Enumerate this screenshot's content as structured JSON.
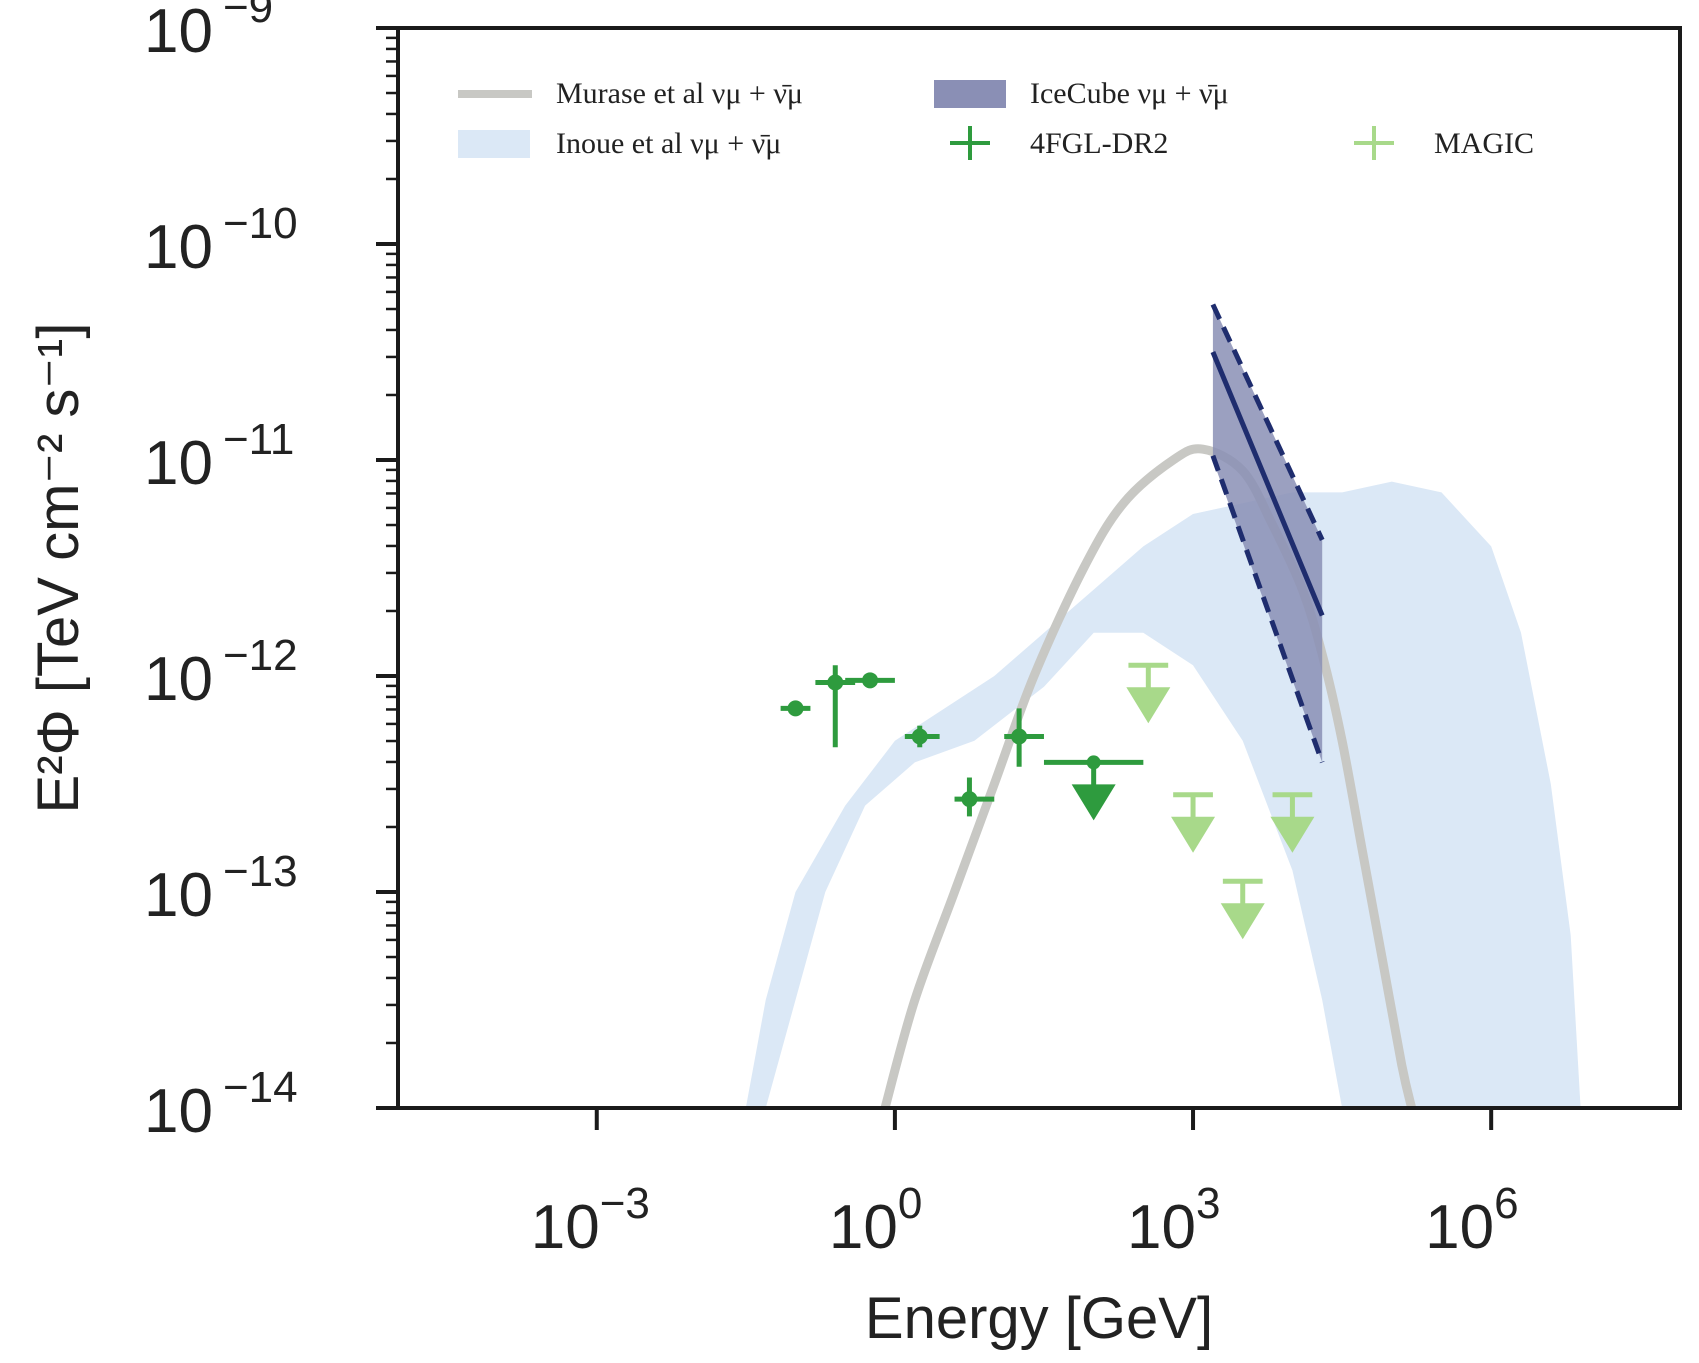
{
  "chart_data": {
    "type": "line",
    "title": "",
    "xlabel": "Energy [GeV]",
    "ylabel": "E²Φ [TeV cm⁻² s⁻¹]",
    "xscale": "log",
    "yscale": "log",
    "xlim_log10": [
      -5,
      7.9
    ],
    "ylim_log10": [
      -14,
      -9
    ],
    "x_ticks": [
      {
        "exp": -3,
        "base": "10",
        "sup": "−3"
      },
      {
        "exp": 0,
        "base": "10",
        "sup": "0"
      },
      {
        "exp": 3,
        "base": "10",
        "sup": "3"
      },
      {
        "exp": 6,
        "base": "10",
        "sup": "6"
      }
    ],
    "y_ticks": [
      {
        "exp": -9,
        "base": "10",
        "sup": "−9"
      },
      {
        "exp": -10,
        "base": "10",
        "sup": "−10"
      },
      {
        "exp": -11,
        "base": "10",
        "sup": "−11"
      },
      {
        "exp": -12,
        "base": "10",
        "sup": "−12"
      },
      {
        "exp": -13,
        "base": "10",
        "sup": "−13"
      },
      {
        "exp": -14,
        "base": "10",
        "sup": "−14"
      }
    ],
    "legend": [
      {
        "id": "murase",
        "label": "Murase et al νμ + ν̄μ",
        "kind": "line",
        "color": "#c8c8c4"
      },
      {
        "id": "icecube",
        "label": "IceCube νμ + ν̄μ",
        "kind": "patch",
        "color": "#8a8fb5"
      },
      {
        "id": "inoue",
        "label": "Inoue et al νμ + ν̄μ",
        "kind": "patch",
        "color": "#dbe8f6"
      },
      {
        "id": "fermi",
        "label": "4FGL-DR2",
        "kind": "errorbar",
        "color": "#2e9b3e"
      },
      {
        "id": "magic",
        "label": "MAGIC",
        "kind": "errorbar",
        "color": "#a8d98a"
      }
    ],
    "series": [
      {
        "name": "Murase et al νμ + ν̄μ",
        "color": "#c8c8c4",
        "log_points": [
          [
            -0.1,
            -14
          ],
          [
            0.2,
            -13.5
          ],
          [
            0.6,
            -13
          ],
          [
            1.0,
            -12.5
          ],
          [
            1.4,
            -12
          ],
          [
            1.9,
            -11.5
          ],
          [
            2.3,
            -11.2
          ],
          [
            2.8,
            -11
          ],
          [
            3.1,
            -10.95
          ],
          [
            3.5,
            -11.05
          ],
          [
            3.8,
            -11.3
          ],
          [
            4.1,
            -11.6
          ],
          [
            4.3,
            -11.9
          ],
          [
            4.5,
            -12.3
          ],
          [
            4.7,
            -12.8
          ],
          [
            4.9,
            -13.3
          ],
          [
            5.1,
            -13.8
          ],
          [
            5.2,
            -14
          ]
        ]
      },
      {
        "name": "Inoue et al νμ + ν̄μ",
        "color": "#dbe8f6",
        "upper_log": [
          [
            -1.5,
            -14
          ],
          [
            -1.3,
            -13.5
          ],
          [
            -1.0,
            -13
          ],
          [
            -0.5,
            -12.6
          ],
          [
            0,
            -12.3
          ],
          [
            0.5,
            -12.15
          ],
          [
            1.0,
            -12
          ],
          [
            1.5,
            -11.8
          ],
          [
            2.0,
            -11.6
          ],
          [
            2.5,
            -11.4
          ],
          [
            3.0,
            -11.25
          ],
          [
            3.5,
            -11.2
          ],
          [
            4.0,
            -11.15
          ],
          [
            4.5,
            -11.15
          ],
          [
            5.0,
            -11.1
          ],
          [
            5.5,
            -11.15
          ],
          [
            6.0,
            -11.4
          ],
          [
            6.3,
            -11.8
          ],
          [
            6.6,
            -12.5
          ],
          [
            6.8,
            -13.2
          ],
          [
            6.9,
            -14
          ]
        ],
        "lower_log": [
          [
            -1.3,
            -14
          ],
          [
            -1.0,
            -13.5
          ],
          [
            -0.7,
            -13.0
          ],
          [
            -0.3,
            -12.6
          ],
          [
            0.2,
            -12.4
          ],
          [
            0.8,
            -12.3
          ],
          [
            1.5,
            -12.05
          ],
          [
            2.0,
            -11.8
          ],
          [
            2.5,
            -11.8
          ],
          [
            3.0,
            -11.95
          ],
          [
            3.5,
            -12.3
          ],
          [
            4.0,
            -12.9
          ],
          [
            4.3,
            -13.5
          ],
          [
            4.5,
            -14
          ]
        ]
      },
      {
        "name": "IceCube νμ + ν̄μ",
        "color": "#8a8fb5",
        "band_log": [
          [
            3.2,
            -10.28
          ],
          [
            4.3,
            -11.37
          ],
          [
            4.3,
            -12.4
          ],
          [
            3.2,
            -11.0
          ]
        ],
        "central_log": [
          [
            3.2,
            -10.5
          ],
          [
            4.3,
            -11.72
          ]
        ],
        "upper_dash_log": [
          [
            3.2,
            -10.28
          ],
          [
            4.3,
            -11.37
          ]
        ],
        "lower_dash_log": [
          [
            3.2,
            -10.98
          ],
          [
            4.3,
            -12.4
          ]
        ]
      },
      {
        "name": "4FGL-DR2",
        "color": "#2e9b3e",
        "points": [
          {
            "x": -1.0,
            "y": -12.15,
            "xlo": -1.15,
            "xhi": -0.85,
            "ylo": -12.18,
            "yhi": -12.12,
            "ul": false
          },
          {
            "x": -0.6,
            "y": -12.03,
            "xlo": -0.8,
            "xhi": -0.4,
            "ylo": -12.33,
            "yhi": -11.95,
            "ul": false
          },
          {
            "x": -0.25,
            "y": -12.02,
            "xlo": -0.5,
            "xhi": 0.0,
            "ylo": -12.04,
            "yhi": -12.0,
            "ul": false
          },
          {
            "x": 0.25,
            "y": -12.28,
            "xlo": 0.1,
            "xhi": 0.45,
            "ylo": -12.33,
            "yhi": -12.23,
            "ul": false
          },
          {
            "x": 0.75,
            "y": -12.57,
            "xlo": 0.6,
            "xhi": 1.0,
            "ylo": -12.65,
            "yhi": -12.47,
            "ul": false
          },
          {
            "x": 1.25,
            "y": -12.28,
            "xlo": 1.1,
            "xhi": 1.5,
            "ylo": -12.42,
            "yhi": -12.15,
            "ul": false
          },
          {
            "x": 2.0,
            "y": -12.4,
            "xlo": 1.5,
            "xhi": 2.5,
            "ul": true
          }
        ]
      },
      {
        "name": "MAGIC",
        "color": "#a8d98a",
        "points": [
          {
            "x": 2.55,
            "y": -11.95,
            "xlo": 2.35,
            "xhi": 2.75,
            "ul": true
          },
          {
            "x": 3.0,
            "y": -12.55,
            "xlo": 2.8,
            "xhi": 3.2,
            "ul": true
          },
          {
            "x": 3.5,
            "y": -12.95,
            "xlo": 3.3,
            "xhi": 3.7,
            "ul": true
          },
          {
            "x": 4.0,
            "y": -12.55,
            "xlo": 3.8,
            "xhi": 4.2,
            "ul": true
          }
        ]
      }
    ]
  }
}
